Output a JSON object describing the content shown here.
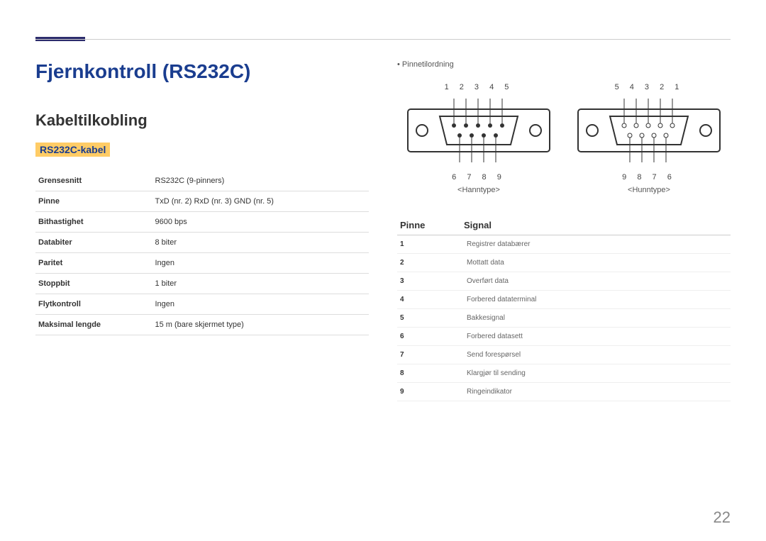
{
  "page": {
    "title": "Fjernkontroll (RS232C)",
    "subtitle": "Kabeltilkobling",
    "section": "RS232C-kabel",
    "pagenum": "22"
  },
  "spec_table": {
    "rows": [
      {
        "k": "Grensesnitt",
        "v": "RS232C (9-pinners)"
      },
      {
        "k": "Pinne",
        "v": "TxD (nr. 2) RxD (nr. 3) GND (nr. 5)"
      },
      {
        "k": "Bithastighet",
        "v": "9600 bps"
      },
      {
        "k": "Databiter",
        "v": "8 biter"
      },
      {
        "k": "Paritet",
        "v": "Ingen"
      },
      {
        "k": "Stoppbit",
        "v": "1 biter"
      },
      {
        "k": "Flytkontroll",
        "v": "Ingen"
      },
      {
        "k": "Maksimal lengde",
        "v": "15 m (bare skjermet type)"
      }
    ]
  },
  "right": {
    "bullet": "Pinnetilordning",
    "connectors": {
      "male": {
        "top": "1 2 3 4 5",
        "bottom": "6 7 8 9",
        "label": "<Hanntype>"
      },
      "female": {
        "top": "5 4 3 2 1",
        "bottom": "9 8 7 6",
        "label": "<Hunntype>"
      }
    },
    "signal_header": {
      "c1": "Pinne",
      "c2": "Signal"
    },
    "signal_rows": [
      {
        "p": "1",
        "s": "Registrer databærer"
      },
      {
        "p": "2",
        "s": "Mottatt data"
      },
      {
        "p": "3",
        "s": "Overført data"
      },
      {
        "p": "4",
        "s": "Forbered dataterminal"
      },
      {
        "p": "5",
        "s": "Bakkesignal"
      },
      {
        "p": "6",
        "s": "Forbered datasett"
      },
      {
        "p": "7",
        "s": "Send forespørsel"
      },
      {
        "p": "8",
        "s": "Klargjør til sending"
      },
      {
        "p": "9",
        "s": "Ringeindikator"
      }
    ]
  },
  "diagram": {
    "stroke": "#333333",
    "fill": "#ffffff"
  }
}
